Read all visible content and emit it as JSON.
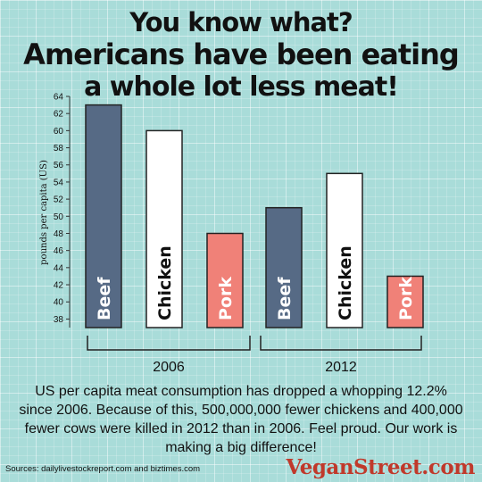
{
  "title_lines": [
    "You know what?",
    "Americans have been eating",
    "a whole lot less meat!"
  ],
  "chart_data": {
    "type": "bar",
    "ylabel": "pounds per capita (US)",
    "ylim": [
      37,
      64
    ],
    "yticks": [
      38,
      40,
      42,
      44,
      46,
      48,
      50,
      52,
      54,
      56,
      58,
      60,
      62,
      64
    ],
    "groups": [
      "2006",
      "2012"
    ],
    "series": [
      {
        "name": "Beef",
        "color": "#566a85",
        "values": [
          63,
          51
        ]
      },
      {
        "name": "Chicken",
        "color": "#ffffff",
        "values": [
          60,
          55
        ]
      },
      {
        "name": "Pork",
        "color": "#f08178",
        "values": [
          48,
          43
        ]
      }
    ]
  },
  "caption": "US per capita meat consumption has dropped a whopping 12.2% since 2006. Because of this, 500,000,000 fewer chickens and 400,000 fewer cows were killed in 2012 than in 2006. Feel proud. Our work is making a big difference!",
  "sources": "Sources: dailylivestockreport.com and biztimes.com",
  "brand": "VeganStreet.com",
  "colors": {
    "background": "#a9dcd9",
    "beef": "#566a85",
    "chicken": "#ffffff",
    "pork": "#f08178",
    "brand": "#c0392b"
  }
}
